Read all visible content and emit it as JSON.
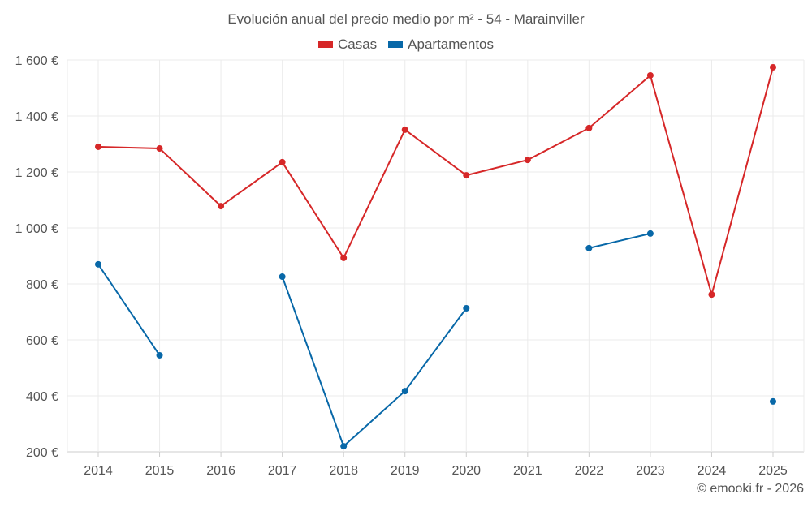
{
  "chart_data": {
    "type": "line",
    "title": "Evolución anual del precio medio por m² - 54 - Marainviller",
    "xlabel": "",
    "ylabel": "",
    "categories": [
      "2014",
      "2015",
      "2016",
      "2017",
      "2018",
      "2019",
      "2020",
      "2021",
      "2022",
      "2023",
      "2024",
      "2025"
    ],
    "ylim": [
      200,
      1600
    ],
    "yticks": [
      200,
      400,
      600,
      800,
      1000,
      1200,
      1400,
      1600
    ],
    "ytick_labels": [
      "200 €",
      "400 €",
      "600 €",
      "800 €",
      "1 000 €",
      "1 200 €",
      "1 400 €",
      "1 600 €"
    ],
    "grid": true,
    "legend_position": "top-center",
    "series": [
      {
        "name": "Casas",
        "color": "#d62728",
        "values": [
          1290,
          1284,
          1078,
          1235,
          893,
          1351,
          1188,
          1243,
          1357,
          1545,
          762,
          1574
        ]
      },
      {
        "name": "Apartamentos",
        "color": "#0868a8",
        "values": [
          870,
          545,
          null,
          826,
          220,
          417,
          713,
          null,
          928,
          980,
          null,
          380
        ]
      }
    ]
  },
  "credit": "© emooki.fr - 2026"
}
